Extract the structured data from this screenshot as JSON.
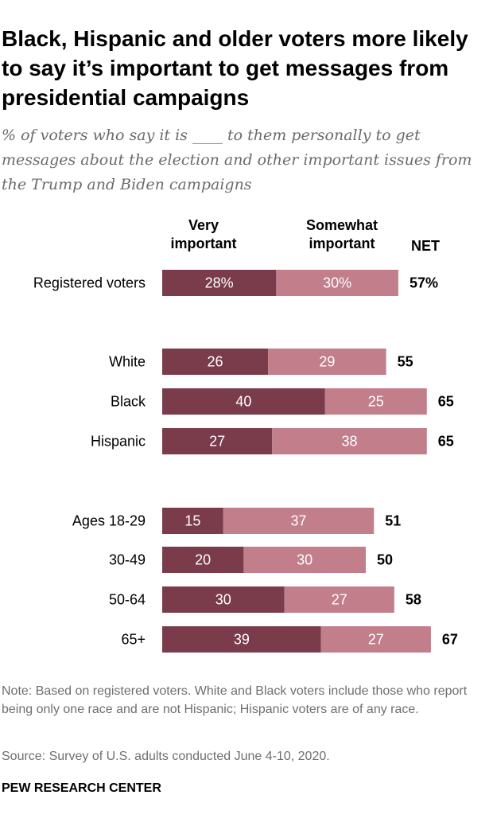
{
  "title": "Black, Hispanic and older voters more likely to say it’s important to get messages from presidential campaigns",
  "subtitle": "% of voters who say it is ____ to them personally to get messages about the election and other important issues from the Trump and Biden campaigns",
  "colors": {
    "very": "#7a3b4b",
    "somewhat": "#c27e8b"
  },
  "headers": {
    "very": "Very important",
    "somewhat": "Somewhat important",
    "net": "NET"
  },
  "chart_data": {
    "type": "bar",
    "stacked": true,
    "orientation": "horizontal",
    "categories": [
      "Registered voters",
      "White",
      "Black",
      "Hispanic",
      "Ages 18-29",
      "30-49",
      "50-64",
      "65+"
    ],
    "groups": [
      [
        "Registered voters"
      ],
      [
        "White",
        "Black",
        "Hispanic"
      ],
      [
        "Ages 18-29",
        "30-49",
        "50-64",
        "65+"
      ]
    ],
    "series": [
      {
        "name": "Very important",
        "values": [
          28,
          26,
          40,
          27,
          15,
          20,
          30,
          39
        ]
      },
      {
        "name": "Somewhat important",
        "values": [
          30,
          29,
          25,
          38,
          37,
          30,
          27,
          27
        ]
      }
    ],
    "net": [
      57,
      55,
      65,
      65,
      51,
      50,
      58,
      67
    ],
    "value_labels_very": [
      "28%",
      "26",
      "40",
      "27",
      "15",
      "20",
      "30",
      "39"
    ],
    "value_labels_somewhat": [
      "30%",
      "29",
      "25",
      "38",
      "37",
      "30",
      "27",
      "27"
    ],
    "net_labels": [
      "57%",
      "55",
      "65",
      "65",
      "51",
      "50",
      "58",
      "67"
    ]
  },
  "note": "Note: Based on registered voters. White and Black voters include those who report being only one race and are not Hispanic; Hispanic voters are of any race.",
  "source": "Source: Survey of U.S. adults conducted June 4-10, 2020.",
  "footer": "PEW RESEARCH CENTER"
}
